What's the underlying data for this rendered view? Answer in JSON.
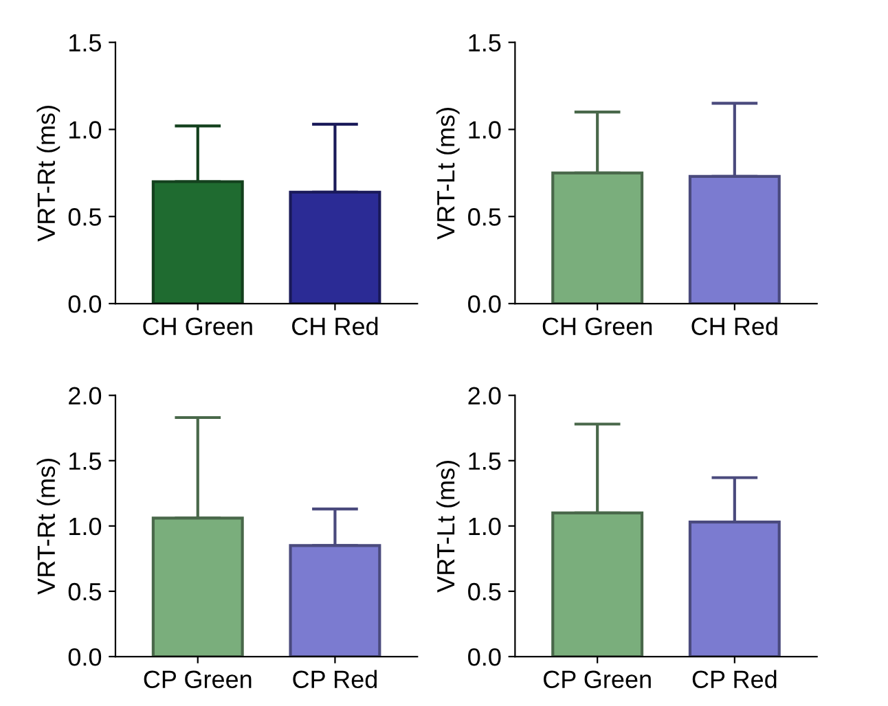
{
  "chart_data": [
    {
      "type": "bar",
      "ylabel": "VRT-Rt (ms)",
      "categories": [
        "CH Green",
        "CH Red"
      ],
      "values": [
        0.7,
        0.64
      ],
      "errors": [
        [
          0.7,
          1.02
        ],
        [
          0.64,
          1.03
        ]
      ],
      "colors": [
        "#1f6b30",
        "#2b2b95"
      ],
      "ylim": [
        0,
        1.5
      ],
      "yticks": [
        {
          "value": 0,
          "label": "0.0"
        },
        {
          "value": 0.5,
          "label": "0.5"
        },
        {
          "value": 1,
          "label": "1.0"
        },
        {
          "value": 1.5,
          "label": "1.5"
        }
      ]
    },
    {
      "type": "bar",
      "ylabel": "VRT-Lt (ms)",
      "categories": [
        "CH Green",
        "CH Red"
      ],
      "values": [
        0.75,
        0.73
      ],
      "errors": [
        [
          0.75,
          1.1
        ],
        [
          0.73,
          1.15
        ]
      ],
      "colors": [
        "#7aae7c",
        "#7b7bd0"
      ],
      "ylim": [
        0,
        1.5
      ],
      "yticks": [
        {
          "value": 0,
          "label": "0.0"
        },
        {
          "value": 0.5,
          "label": "0.5"
        },
        {
          "value": 1,
          "label": "1.0"
        },
        {
          "value": 1.5,
          "label": "1.5"
        }
      ]
    },
    {
      "type": "bar",
      "ylabel": "VRT-Rt (ms)",
      "categories": [
        "CP Green",
        "CP Red"
      ],
      "values": [
        1.06,
        0.85
      ],
      "errors": [
        [
          1.06,
          1.83
        ],
        [
          0.85,
          1.13
        ]
      ],
      "colors": [
        "#7aae7c",
        "#7b7bd0"
      ],
      "ylim": [
        0,
        2.0
      ],
      "yticks": [
        {
          "value": 0,
          "label": "0.0"
        },
        {
          "value": 0.5,
          "label": "0.5"
        },
        {
          "value": 1,
          "label": "1.0"
        },
        {
          "value": 1.5,
          "label": "1.5"
        },
        {
          "value": 2,
          "label": "2.0"
        }
      ]
    },
    {
      "type": "bar",
      "ylabel": "VRT-Lt (ms)",
      "categories": [
        "CP Green",
        "CP Red"
      ],
      "values": [
        1.1,
        1.03
      ],
      "errors": [
        [
          1.1,
          1.78
        ],
        [
          1.03,
          1.37
        ]
      ],
      "colors": [
        "#7aae7c",
        "#7b7bd0"
      ],
      "ylim": [
        0,
        2.0
      ],
      "yticks": [
        {
          "value": 0,
          "label": "0.0"
        },
        {
          "value": 0.5,
          "label": "0.5"
        },
        {
          "value": 1,
          "label": "1.0"
        },
        {
          "value": 1.5,
          "label": "1.5"
        },
        {
          "value": 2,
          "label": "2.0"
        }
      ]
    }
  ]
}
